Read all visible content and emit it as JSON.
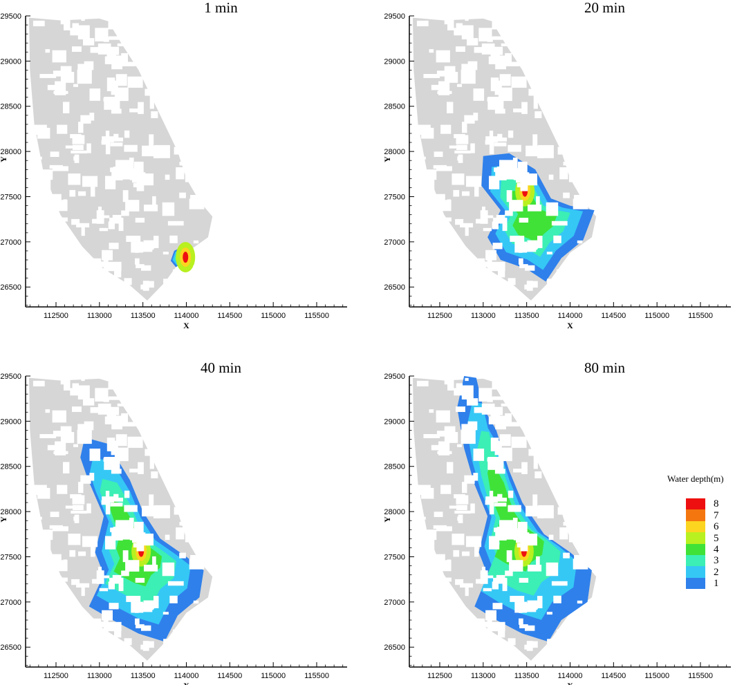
{
  "chart_data": [
    {
      "type": "heatmap",
      "title": "1 min",
      "xlabel": "X",
      "ylabel": "Y",
      "xlim": [
        112150,
        115850
      ],
      "ylim": [
        26280,
        29500
      ],
      "xticks": [
        112500,
        113000,
        113500,
        114000,
        114500,
        115000,
        115500
      ],
      "yticks": [
        26500,
        27000,
        27500,
        28000,
        28500,
        29000,
        29500
      ],
      "flood_extent": [
        [
          113880,
          26720
        ],
        [
          113820,
          26790
        ],
        [
          113860,
          26900
        ],
        [
          113960,
          26950
        ],
        [
          114050,
          26930
        ],
        [
          114020,
          26840
        ],
        [
          113940,
          26760
        ]
      ],
      "max_depth_point": [
        113990,
        26830
      ]
    },
    {
      "type": "heatmap",
      "title": "20 min",
      "xlabel": "X",
      "ylabel": "Y",
      "xlim": [
        112150,
        115850
      ],
      "ylim": [
        26280,
        29500
      ],
      "xticks": [
        112500,
        113000,
        113500,
        114000,
        114500,
        115000,
        115500
      ],
      "yticks": [
        26500,
        27000,
        27500,
        28000,
        28500,
        29000,
        29500
      ],
      "flood_extent": [
        [
          113000,
          27950
        ],
        [
          113300,
          27980
        ],
        [
          113600,
          27800
        ],
        [
          113780,
          27480
        ],
        [
          114000,
          27400
        ],
        [
          114280,
          27350
        ],
        [
          114150,
          27020
        ],
        [
          113900,
          26820
        ],
        [
          113720,
          26560
        ],
        [
          113500,
          26700
        ],
        [
          113200,
          26800
        ],
        [
          113050,
          27050
        ],
        [
          113200,
          27350
        ],
        [
          112980,
          27620
        ]
      ],
      "max_depth_point": [
        113480,
        27560
      ]
    },
    {
      "type": "heatmap",
      "title": "40 min",
      "xlabel": "X",
      "ylabel": "Y",
      "xlim": [
        112150,
        115850
      ],
      "ylim": [
        26280,
        29500
      ],
      "xticks": [
        112500,
        113000,
        113500,
        114000,
        114500,
        115000,
        115500
      ],
      "yticks": [
        26500,
        27000,
        27500,
        28000,
        28500,
        29000,
        29500
      ],
      "flood_extent": [
        [
          112830,
          28820
        ],
        [
          113100,
          28750
        ],
        [
          113350,
          28350
        ],
        [
          113500,
          28000
        ],
        [
          113700,
          27700
        ],
        [
          114000,
          27500
        ],
        [
          114200,
          27350
        ],
        [
          114150,
          27050
        ],
        [
          113900,
          26850
        ],
        [
          113750,
          26560
        ],
        [
          113450,
          26650
        ],
        [
          113150,
          26800
        ],
        [
          112880,
          26950
        ],
        [
          113050,
          27300
        ],
        [
          112950,
          27550
        ],
        [
          113050,
          27950
        ],
        [
          112870,
          28350
        ],
        [
          112780,
          28600
        ]
      ],
      "max_depth_point": [
        113480,
        27560
      ]
    },
    {
      "type": "heatmap",
      "title": "80 min",
      "xlabel": "X",
      "ylabel": "Y",
      "xlim": [
        112150,
        115850
      ],
      "ylim": [
        26280,
        29500
      ],
      "xticks": [
        112500,
        113000,
        113500,
        114000,
        114500,
        115000,
        115500
      ],
      "yticks": [
        26500,
        27000,
        27500,
        28000,
        28500,
        29000,
        29500
      ],
      "flood_extent": [
        [
          112780,
          29500
        ],
        [
          112920,
          29480
        ],
        [
          113000,
          29150
        ],
        [
          113150,
          28900
        ],
        [
          113300,
          28450
        ],
        [
          113450,
          28100
        ],
        [
          113700,
          27750
        ],
        [
          114000,
          27550
        ],
        [
          114250,
          27350
        ],
        [
          114200,
          27000
        ],
        [
          113900,
          26800
        ],
        [
          113750,
          26560
        ],
        [
          113450,
          26650
        ],
        [
          113150,
          26800
        ],
        [
          112900,
          26950
        ],
        [
          113050,
          27300
        ],
        [
          112950,
          27550
        ],
        [
          113050,
          27950
        ],
        [
          112900,
          28300
        ],
        [
          112780,
          28700
        ],
        [
          112700,
          29150
        ]
      ],
      "max_depth_point": [
        113470,
        27560
      ]
    }
  ],
  "legend": {
    "title": "Water depth(m)",
    "levels": [
      "8",
      "7",
      "6",
      "5",
      "4",
      "3",
      "2",
      "1"
    ],
    "colors": [
      "#ee1010",
      "#f4760f",
      "#fbd520",
      "#b8f020",
      "#40e238",
      "#3cefb4",
      "#35c8f5",
      "#2f80eb"
    ]
  },
  "colors": {
    "land": "#d6d6d6",
    "building": "#ffffff"
  }
}
